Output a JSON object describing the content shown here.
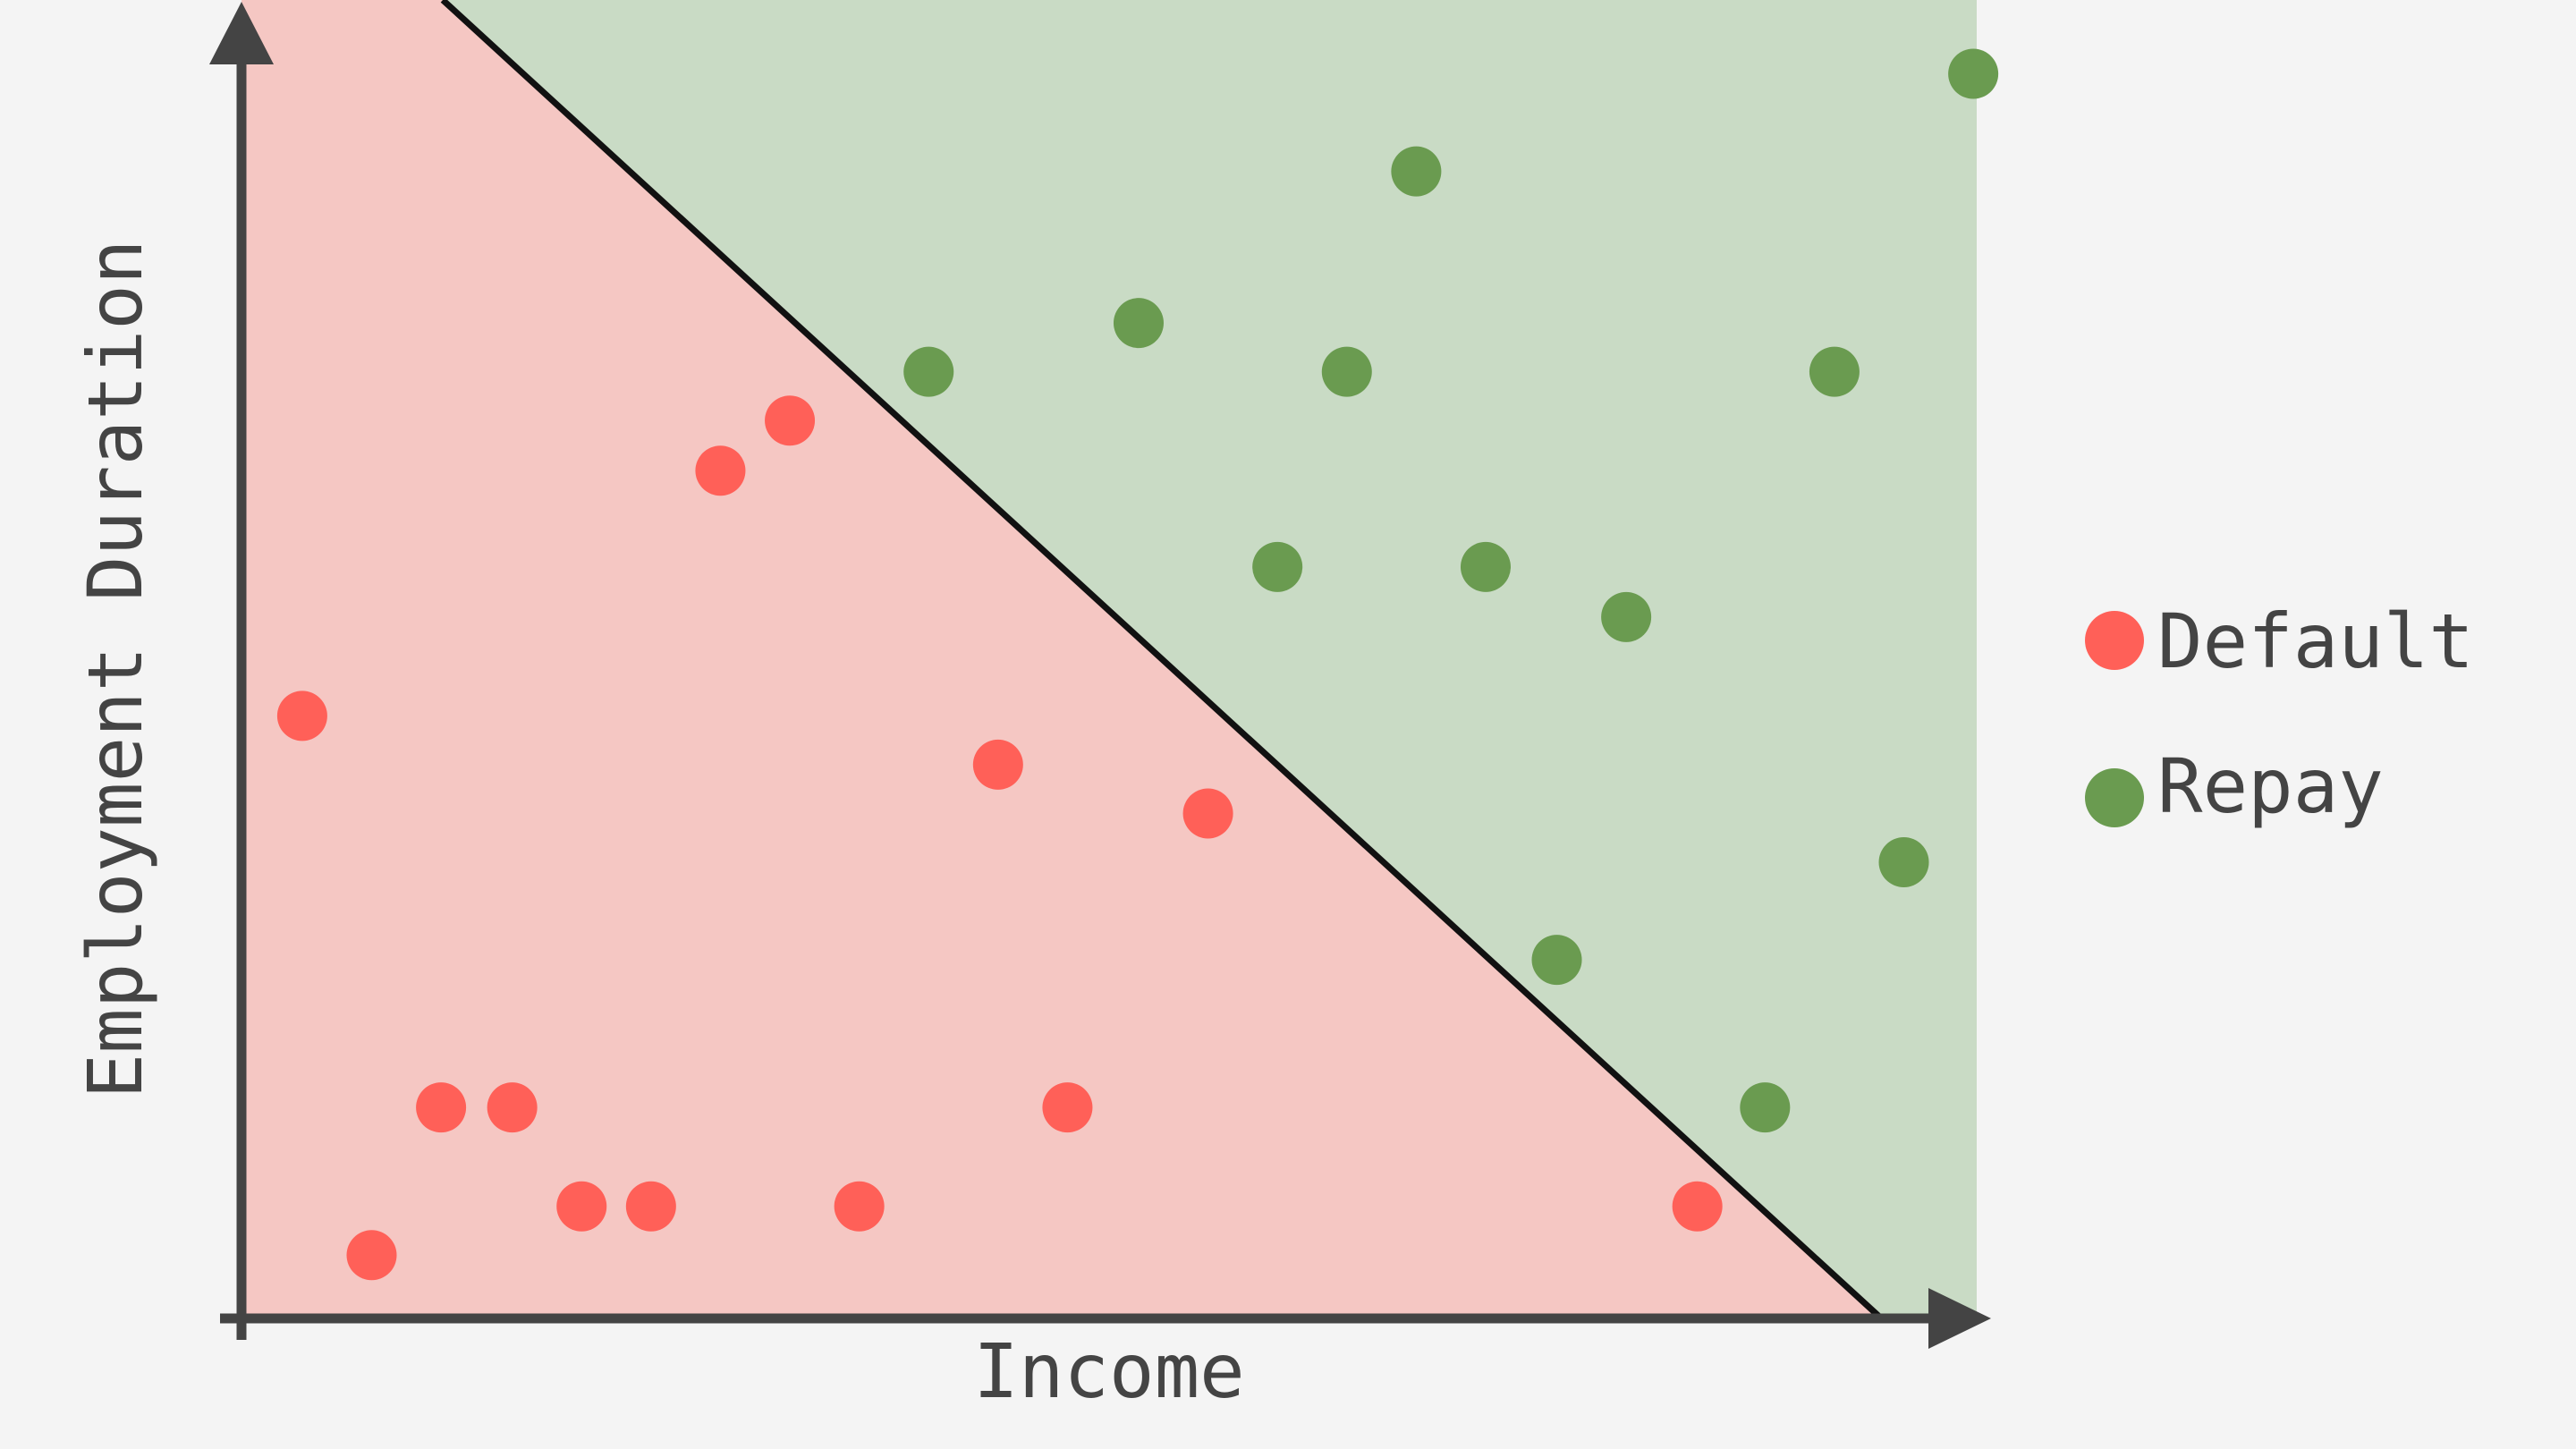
{
  "chart_data": {
    "type": "scatter",
    "title": "",
    "xlabel": "Income",
    "ylabel": "Employment Duration",
    "xlim": [
      0,
      100
    ],
    "ylim": [
      0,
      100
    ],
    "grid": false,
    "legend_position": "right",
    "decision_boundary": {
      "points": [
        [
          11.6,
          100
        ],
        [
          94.5,
          0
        ]
      ],
      "regions": [
        {
          "series": "Default",
          "side": "below"
        },
        {
          "series": "Repay",
          "side": "above"
        }
      ]
    },
    "series": [
      {
        "name": "Default",
        "color": "#ff6058",
        "region_color": "#f5c7c3",
        "points": [
          {
            "x": 3.5,
            "y": 45.7
          },
          {
            "x": 7.5,
            "y": 4.8
          },
          {
            "x": 11.5,
            "y": 16.0
          },
          {
            "x": 15.6,
            "y": 16.0
          },
          {
            "x": 19.6,
            "y": 8.5
          },
          {
            "x": 23.6,
            "y": 8.5
          },
          {
            "x": 27.6,
            "y": 64.3
          },
          {
            "x": 31.6,
            "y": 68.1
          },
          {
            "x": 35.6,
            "y": 8.5
          },
          {
            "x": 43.6,
            "y": 42.0
          },
          {
            "x": 47.6,
            "y": 16.0
          },
          {
            "x": 55.7,
            "y": 38.3
          },
          {
            "x": 83.9,
            "y": 8.5
          }
        ]
      },
      {
        "name": "Repay",
        "color": "#6a9b50",
        "region_color": "#c9dbc5",
        "points": [
          {
            "x": 39.6,
            "y": 71.8
          },
          {
            "x": 51.7,
            "y": 75.5
          },
          {
            "x": 59.7,
            "y": 57.0
          },
          {
            "x": 63.7,
            "y": 71.8
          },
          {
            "x": 67.7,
            "y": 87.0
          },
          {
            "x": 71.7,
            "y": 57.0
          },
          {
            "x": 75.8,
            "y": 27.2
          },
          {
            "x": 79.8,
            "y": 53.2
          },
          {
            "x": 87.8,
            "y": 16.0
          },
          {
            "x": 91.8,
            "y": 71.8
          },
          {
            "x": 95.8,
            "y": 34.6
          },
          {
            "x": 99.8,
            "y": 94.4
          }
        ]
      }
    ]
  }
}
